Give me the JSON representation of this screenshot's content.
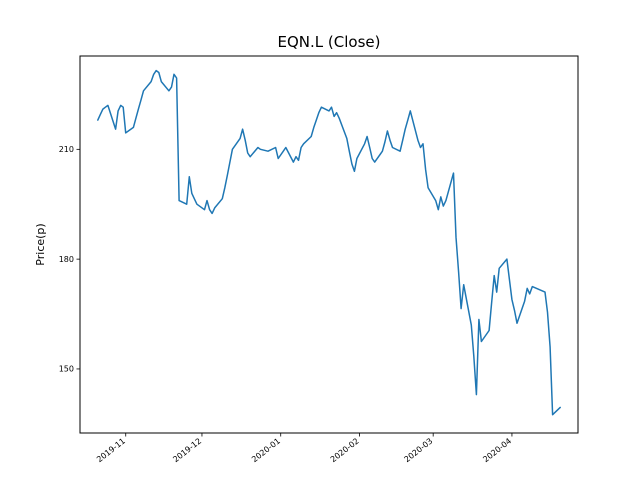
{
  "figure": {
    "title": "EQN.L (Close)",
    "background": "#ffffff",
    "line_color": "#1f77b4",
    "spine_color": "#000000"
  },
  "chart_data": {
    "type": "line",
    "title": "EQN.L (Close)",
    "xlabel": "",
    "ylabel": "Price(p)",
    "series_name": "Close",
    "grid": false,
    "legend": "none",
    "ylim": [
      132.5,
      235.5
    ],
    "xlim": [
      "2019-10-14",
      "2020-04-27"
    ],
    "yticks": [
      150,
      180,
      210
    ],
    "xticks": [
      {
        "date": "2019-11-01",
        "label": "2019-11"
      },
      {
        "date": "2019-12-01",
        "label": "2019-12"
      },
      {
        "date": "2020-01-01",
        "label": "2020-01"
      },
      {
        "date": "2020-02-01",
        "label": "2020-02"
      },
      {
        "date": "2020-03-01",
        "label": "2020-03"
      },
      {
        "date": "2020-04-01",
        "label": "2020-04"
      }
    ],
    "dates": [
      "2019-10-21",
      "2019-10-22",
      "2019-10-23",
      "2019-10-24",
      "2019-10-25",
      "2019-10-28",
      "2019-10-29",
      "2019-10-30",
      "2019-10-31",
      "2019-11-01",
      "2019-11-04",
      "2019-11-05",
      "2019-11-06",
      "2019-11-07",
      "2019-11-08",
      "2019-11-11",
      "2019-11-12",
      "2019-11-13",
      "2019-11-14",
      "2019-11-15",
      "2019-11-18",
      "2019-11-19",
      "2019-11-20",
      "2019-11-21",
      "2019-11-22",
      "2019-11-25",
      "2019-11-26",
      "2019-11-27",
      "2019-11-28",
      "2019-11-29",
      "2019-12-02",
      "2019-12-03",
      "2019-12-04",
      "2019-12-05",
      "2019-12-06",
      "2019-12-09",
      "2019-12-10",
      "2019-12-11",
      "2019-12-12",
      "2019-12-13",
      "2019-12-16",
      "2019-12-17",
      "2019-12-18",
      "2019-12-19",
      "2019-12-20",
      "2019-12-23",
      "2019-12-24",
      "2019-12-27",
      "2019-12-30",
      "2019-12-31",
      "2020-01-02",
      "2020-01-03",
      "2020-01-06",
      "2020-01-07",
      "2020-01-08",
      "2020-01-09",
      "2020-01-10",
      "2020-01-13",
      "2020-01-14",
      "2020-01-15",
      "2020-01-16",
      "2020-01-17",
      "2020-01-20",
      "2020-01-21",
      "2020-01-22",
      "2020-01-23",
      "2020-01-24",
      "2020-01-27",
      "2020-01-28",
      "2020-01-29",
      "2020-01-30",
      "2020-01-31",
      "2020-02-03",
      "2020-02-04",
      "2020-02-05",
      "2020-02-06",
      "2020-02-07",
      "2020-02-10",
      "2020-02-11",
      "2020-02-12",
      "2020-02-13",
      "2020-02-14",
      "2020-02-17",
      "2020-02-18",
      "2020-02-19",
      "2020-02-20",
      "2020-02-21",
      "2020-02-24",
      "2020-02-25",
      "2020-02-26",
      "2020-02-27",
      "2020-02-28",
      "2020-03-02",
      "2020-03-03",
      "2020-03-04",
      "2020-03-05",
      "2020-03-06",
      "2020-03-09",
      "2020-03-10",
      "2020-03-11",
      "2020-03-12",
      "2020-03-13",
      "2020-03-16",
      "2020-03-17",
      "2020-03-18",
      "2020-03-19",
      "2020-03-20",
      "2020-03-23",
      "2020-03-24",
      "2020-03-25",
      "2020-03-26",
      "2020-03-27",
      "2020-03-30",
      "2020-03-31",
      "2020-04-01",
      "2020-04-02",
      "2020-04-03",
      "2020-04-06",
      "2020-04-07",
      "2020-04-08",
      "2020-04-09",
      "2020-04-14",
      "2020-04-15",
      "2020-04-16",
      "2020-04-17",
      "2020-04-20"
    ],
    "values": [
      218,
      219.5,
      221,
      221.5,
      222,
      215.5,
      220.5,
      222,
      221.5,
      214.5,
      216,
      218.5,
      221,
      223.5,
      226,
      228.5,
      230.5,
      231.5,
      231,
      228.5,
      226,
      227,
      230.5,
      229.5,
      196,
      195,
      202.5,
      198,
      196.5,
      195,
      193.5,
      196,
      193.5,
      192.5,
      194,
      196.5,
      199.5,
      203,
      206.5,
      210,
      213,
      215.5,
      212.5,
      209,
      208,
      210.5,
      210,
      209.5,
      210.5,
      207.5,
      209.5,
      210.5,
      206.5,
      208,
      207,
      210.5,
      211.5,
      213.5,
      216,
      218,
      220,
      221.5,
      220.5,
      221.5,
      219,
      220,
      218.5,
      213,
      209.5,
      206,
      204,
      207.5,
      211.5,
      213.5,
      210.5,
      207.5,
      206.5,
      209.5,
      212,
      215,
      212.5,
      210.5,
      209.5,
      212.5,
      215.5,
      218,
      220.5,
      212.5,
      210.5,
      211.5,
      204.5,
      199.5,
      196,
      193.5,
      197,
      194.5,
      196,
      203.5,
      186,
      176.5,
      166.5,
      173,
      162,
      153.5,
      143,
      163.5,
      157.5,
      160.5,
      168,
      175.5,
      171,
      177.5,
      180,
      174.5,
      169,
      166,
      162.5,
      168.5,
      172,
      170.5,
      172.5,
      171,
      165.5,
      156,
      137.5,
      139.5
    ]
  }
}
